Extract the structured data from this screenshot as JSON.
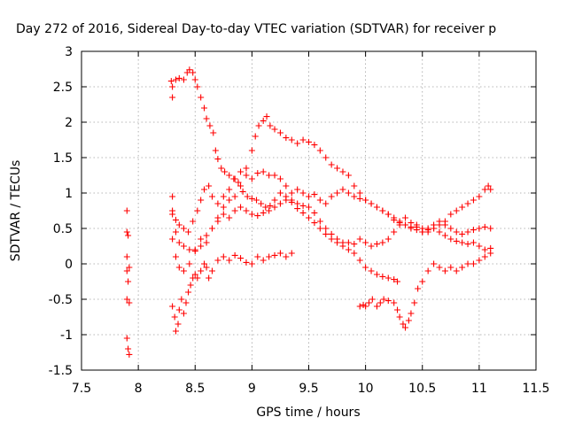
{
  "chart_data": {
    "type": "scatter",
    "title": "Day 272 of 2016, Sidereal Day-to-day VTEC variation (SDTVAR) for receiver p",
    "xlabel": "GPS time / hours",
    "ylabel": "SDTVAR / TECUs",
    "xlim": [
      7.5,
      11.5
    ],
    "ylim": [
      -1.5,
      3
    ],
    "x_ticks": [
      7.5,
      8,
      8.5,
      9,
      9.5,
      10,
      10.5,
      11,
      11.5
    ],
    "x_tick_labels": [
      "7.5",
      "8",
      "8.5",
      "9",
      "9.5",
      "10",
      "10.5",
      "11",
      "11.5"
    ],
    "y_ticks": [
      -1.5,
      -1,
      -0.5,
      0,
      0.5,
      1,
      1.5,
      2,
      2.5,
      3
    ],
    "y_tick_labels": [
      "-1.5",
      "-1",
      "-0.5",
      "0",
      "0.5",
      "1",
      "1.5",
      "2",
      "2.5",
      "3"
    ],
    "grid": true,
    "marker": "+",
    "color": "#ff0000",
    "series": [
      {
        "points": [
          [
            7.9,
            0.75
          ],
          [
            7.9,
            0.45
          ],
          [
            7.91,
            0.4
          ],
          [
            7.9,
            0.1
          ],
          [
            7.92,
            -0.05
          ],
          [
            7.9,
            -0.1
          ],
          [
            7.91,
            -0.25
          ],
          [
            7.9,
            -0.5
          ],
          [
            7.92,
            -0.55
          ],
          [
            7.9,
            -1.05
          ],
          [
            7.91,
            -1.2
          ],
          [
            7.92,
            -1.28
          ]
        ]
      },
      {
        "points": [
          [
            8.29,
            2.58
          ],
          [
            8.3,
            2.5
          ],
          [
            8.3,
            2.35
          ],
          [
            8.33,
            2.6
          ],
          [
            8.36,
            2.62
          ],
          [
            8.4,
            2.6
          ],
          [
            8.43,
            2.7
          ],
          [
            8.45,
            2.74
          ],
          [
            8.48,
            2.7
          ],
          [
            8.5,
            2.6
          ],
          [
            8.52,
            2.5
          ],
          [
            8.55,
            2.35
          ],
          [
            8.58,
            2.2
          ],
          [
            8.6,
            2.05
          ],
          [
            8.63,
            1.95
          ],
          [
            8.66,
            1.85
          ],
          [
            8.68,
            1.6
          ],
          [
            8.7,
            1.48
          ],
          [
            8.73,
            1.35
          ],
          [
            8.76,
            1.3
          ],
          [
            8.8,
            1.25
          ],
          [
            8.84,
            1.2
          ],
          [
            8.88,
            1.15
          ],
          [
            8.92,
            1.02
          ],
          [
            8.96,
            0.95
          ],
          [
            9.0,
            0.92
          ],
          [
            9.04,
            0.9
          ],
          [
            9.08,
            0.85
          ],
          [
            9.12,
            0.8
          ],
          [
            9.16,
            0.82
          ],
          [
            9.2,
            0.8
          ],
          [
            9.25,
            0.85
          ],
          [
            9.3,
            0.9
          ],
          [
            9.35,
            0.87
          ],
          [
            9.4,
            0.78
          ],
          [
            9.45,
            0.72
          ],
          [
            9.5,
            0.65
          ],
          [
            9.55,
            0.58
          ],
          [
            9.6,
            0.5
          ],
          [
            9.65,
            0.42
          ],
          [
            9.7,
            0.35
          ],
          [
            9.75,
            0.3
          ],
          [
            9.8,
            0.25
          ],
          [
            9.85,
            0.2
          ],
          [
            9.9,
            0.15
          ],
          [
            9.95,
            0.05
          ],
          [
            10.0,
            -0.05
          ],
          [
            10.05,
            -0.1
          ],
          [
            10.1,
            -0.15
          ],
          [
            10.15,
            -0.18
          ],
          [
            10.2,
            -0.2
          ],
          [
            10.25,
            -0.22
          ],
          [
            10.28,
            -0.25
          ]
        ]
      },
      {
        "points": [
          [
            8.3,
            0.95
          ],
          [
            8.3,
            0.75
          ],
          [
            8.33,
            0.62
          ],
          [
            8.36,
            0.55
          ],
          [
            8.4,
            0.5
          ],
          [
            8.44,
            0.45
          ],
          [
            8.48,
            0.6
          ],
          [
            8.52,
            0.75
          ],
          [
            8.55,
            0.9
          ],
          [
            8.58,
            1.05
          ],
          [
            8.62,
            1.1
          ],
          [
            8.65,
            0.95
          ],
          [
            8.7,
            0.85
          ],
          [
            8.75,
            0.95
          ],
          [
            8.8,
            1.05
          ],
          [
            8.85,
            1.2
          ],
          [
            8.9,
            1.3
          ],
          [
            8.95,
            1.25
          ],
          [
            9.0,
            1.2
          ],
          [
            9.05,
            1.28
          ],
          [
            9.1,
            1.3
          ],
          [
            9.15,
            1.25
          ],
          [
            9.2,
            1.25
          ],
          [
            9.25,
            1.2
          ],
          [
            9.3,
            1.1
          ],
          [
            9.35,
            1.0
          ],
          [
            9.4,
            1.05
          ],
          [
            9.45,
            1.0
          ],
          [
            9.5,
            0.95
          ],
          [
            9.55,
            0.98
          ],
          [
            9.6,
            0.9
          ],
          [
            9.65,
            0.85
          ],
          [
            9.7,
            0.95
          ],
          [
            9.75,
            1.0
          ],
          [
            9.8,
            1.05
          ],
          [
            9.85,
            1.0
          ],
          [
            9.9,
            0.95
          ],
          [
            9.95,
            0.92
          ],
          [
            10.0,
            0.9
          ],
          [
            10.05,
            0.85
          ],
          [
            10.1,
            0.8
          ],
          [
            10.15,
            0.75
          ],
          [
            10.2,
            0.7
          ],
          [
            10.25,
            0.65
          ],
          [
            10.3,
            0.6
          ],
          [
            10.35,
            0.55
          ],
          [
            10.4,
            0.5
          ],
          [
            10.45,
            0.55
          ],
          [
            10.5,
            0.5
          ],
          [
            10.55,
            0.45
          ],
          [
            10.6,
            0.5
          ],
          [
            10.65,
            0.55
          ],
          [
            10.7,
            0.6
          ],
          [
            10.75,
            0.7
          ],
          [
            10.8,
            0.75
          ],
          [
            10.85,
            0.8
          ],
          [
            10.9,
            0.85
          ],
          [
            10.95,
            0.9
          ],
          [
            11.0,
            0.95
          ],
          [
            11.05,
            1.05
          ],
          [
            11.08,
            1.1
          ],
          [
            11.1,
            1.05
          ]
        ]
      },
      {
        "points": [
          [
            8.3,
            0.7
          ],
          [
            8.33,
            0.45
          ],
          [
            8.36,
            0.3
          ],
          [
            8.4,
            0.25
          ],
          [
            8.45,
            0.2
          ],
          [
            8.5,
            0.18
          ],
          [
            8.55,
            0.25
          ],
          [
            8.6,
            0.3
          ],
          [
            8.65,
            0.5
          ],
          [
            8.7,
            0.65
          ],
          [
            8.75,
            0.8
          ],
          [
            8.8,
            0.9
          ],
          [
            8.85,
            0.95
          ],
          [
            8.9,
            1.1
          ],
          [
            8.95,
            1.35
          ],
          [
            9.0,
            1.6
          ],
          [
            9.03,
            1.8
          ],
          [
            9.06,
            1.95
          ],
          [
            9.1,
            2.02
          ],
          [
            9.13,
            2.08
          ],
          [
            9.16,
            1.95
          ],
          [
            9.2,
            1.9
          ],
          [
            9.25,
            1.85
          ],
          [
            9.3,
            1.78
          ],
          [
            9.35,
            1.75
          ],
          [
            9.4,
            1.7
          ],
          [
            9.45,
            1.75
          ],
          [
            9.5,
            1.72
          ],
          [
            9.55,
            1.68
          ],
          [
            9.6,
            1.6
          ],
          [
            9.65,
            1.5
          ],
          [
            9.7,
            1.4
          ],
          [
            9.75,
            1.35
          ],
          [
            9.8,
            1.3
          ],
          [
            9.85,
            1.25
          ],
          [
            9.9,
            1.1
          ],
          [
            9.95,
            1.0
          ],
          [
            10.0,
            0.9
          ],
          [
            10.05,
            0.85
          ],
          [
            10.1,
            0.8
          ],
          [
            10.15,
            0.75
          ],
          [
            10.2,
            0.7
          ],
          [
            10.25,
            0.62
          ],
          [
            10.3,
            0.58
          ],
          [
            10.35,
            0.55
          ],
          [
            10.4,
            0.52
          ],
          [
            10.45,
            0.48
          ],
          [
            10.5,
            0.45
          ],
          [
            10.55,
            0.5
          ],
          [
            10.6,
            0.55
          ],
          [
            10.65,
            0.6
          ],
          [
            10.7,
            0.55
          ],
          [
            10.75,
            0.5
          ],
          [
            10.8,
            0.45
          ],
          [
            10.85,
            0.42
          ],
          [
            10.9,
            0.45
          ],
          [
            10.95,
            0.48
          ],
          [
            11.0,
            0.5
          ],
          [
            11.05,
            0.52
          ],
          [
            11.1,
            0.5
          ]
        ]
      },
      {
        "points": [
          [
            8.3,
            0.35
          ],
          [
            8.33,
            0.1
          ],
          [
            8.36,
            -0.05
          ],
          [
            8.4,
            -0.1
          ],
          [
            8.45,
            0.0
          ],
          [
            8.5,
            0.2
          ],
          [
            8.55,
            0.35
          ],
          [
            8.6,
            0.4
          ],
          [
            8.65,
            0.5
          ],
          [
            8.7,
            0.6
          ],
          [
            8.75,
            0.7
          ],
          [
            8.8,
            0.65
          ],
          [
            8.85,
            0.75
          ],
          [
            8.9,
            0.8
          ],
          [
            8.95,
            0.75
          ],
          [
            9.0,
            0.7
          ],
          [
            9.05,
            0.68
          ],
          [
            9.1,
            0.72
          ],
          [
            9.15,
            0.75
          ],
          [
            9.2,
            0.9
          ],
          [
            9.25,
            1.0
          ],
          [
            9.3,
            0.95
          ],
          [
            9.35,
            0.9
          ],
          [
            9.4,
            0.85
          ],
          [
            9.45,
            0.82
          ],
          [
            9.5,
            0.8
          ],
          [
            9.55,
            0.72
          ],
          [
            9.6,
            0.6
          ],
          [
            9.65,
            0.5
          ],
          [
            9.7,
            0.42
          ],
          [
            9.75,
            0.35
          ],
          [
            9.8,
            0.3
          ],
          [
            9.85,
            0.3
          ],
          [
            9.9,
            0.28
          ],
          [
            9.95,
            0.35
          ],
          [
            10.0,
            0.3
          ],
          [
            10.05,
            0.25
          ],
          [
            10.1,
            0.28
          ],
          [
            10.15,
            0.3
          ],
          [
            10.2,
            0.35
          ],
          [
            10.25,
            0.45
          ],
          [
            10.3,
            0.55
          ],
          [
            10.35,
            0.65
          ],
          [
            10.4,
            0.58
          ],
          [
            10.45,
            0.52
          ],
          [
            10.5,
            0.45
          ],
          [
            10.55,
            0.48
          ],
          [
            10.6,
            0.5
          ],
          [
            10.65,
            0.45
          ],
          [
            10.7,
            0.4
          ],
          [
            10.75,
            0.35
          ],
          [
            10.8,
            0.32
          ],
          [
            10.85,
            0.3
          ],
          [
            10.9,
            0.28
          ],
          [
            10.95,
            0.3
          ],
          [
            11.0,
            0.25
          ],
          [
            11.05,
            0.2
          ],
          [
            11.1,
            0.22
          ]
        ]
      },
      {
        "points": [
          [
            8.3,
            -0.6
          ],
          [
            8.32,
            -0.75
          ],
          [
            8.33,
            -0.95
          ],
          [
            8.35,
            -0.85
          ],
          [
            8.36,
            -0.65
          ],
          [
            8.38,
            -0.5
          ],
          [
            8.4,
            -0.7
          ],
          [
            8.42,
            -0.55
          ],
          [
            8.44,
            -0.4
          ],
          [
            8.46,
            -0.3
          ],
          [
            8.48,
            -0.2
          ],
          [
            8.5,
            -0.15
          ],
          [
            8.52,
            -0.2
          ],
          [
            8.55,
            -0.1
          ],
          [
            8.58,
            0.0
          ],
          [
            8.6,
            -0.05
          ],
          [
            8.62,
            -0.2
          ],
          [
            8.65,
            -0.1
          ],
          [
            8.7,
            0.05
          ],
          [
            8.75,
            0.1
          ],
          [
            8.8,
            0.05
          ],
          [
            8.85,
            0.12
          ],
          [
            8.9,
            0.08
          ],
          [
            8.95,
            0.02
          ],
          [
            9.0,
            0.0
          ],
          [
            9.05,
            0.1
          ],
          [
            9.1,
            0.05
          ],
          [
            9.15,
            0.1
          ],
          [
            9.2,
            0.12
          ],
          [
            9.25,
            0.15
          ],
          [
            9.3,
            0.1
          ],
          [
            9.35,
            0.15
          ]
        ]
      },
      {
        "points": [
          [
            9.95,
            -0.6
          ],
          [
            9.98,
            -0.58
          ],
          [
            10.0,
            -0.6
          ],
          [
            10.03,
            -0.55
          ],
          [
            10.06,
            -0.5
          ],
          [
            10.1,
            -0.6
          ],
          [
            10.13,
            -0.55
          ],
          [
            10.16,
            -0.5
          ],
          [
            10.2,
            -0.52
          ],
          [
            10.25,
            -0.55
          ],
          [
            10.28,
            -0.65
          ],
          [
            10.3,
            -0.75
          ],
          [
            10.33,
            -0.85
          ],
          [
            10.35,
            -0.9
          ],
          [
            10.38,
            -0.8
          ],
          [
            10.4,
            -0.7
          ],
          [
            10.43,
            -0.55
          ],
          [
            10.46,
            -0.35
          ],
          [
            10.5,
            -0.25
          ],
          [
            10.55,
            -0.1
          ],
          [
            10.6,
            0.0
          ],
          [
            10.65,
            -0.05
          ],
          [
            10.7,
            -0.1
          ],
          [
            10.75,
            -0.05
          ],
          [
            10.8,
            -0.1
          ],
          [
            10.85,
            -0.05
          ],
          [
            10.9,
            0.0
          ],
          [
            10.95,
            0.0
          ],
          [
            11.0,
            0.05
          ],
          [
            11.05,
            0.1
          ],
          [
            11.1,
            0.15
          ]
        ]
      }
    ]
  }
}
